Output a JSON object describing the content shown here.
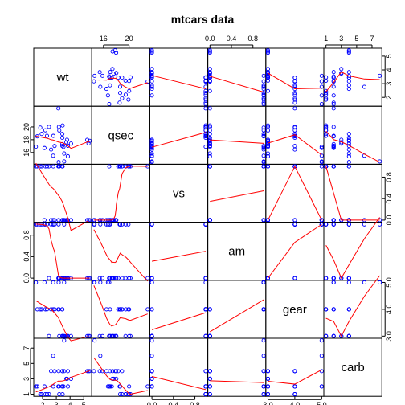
{
  "chart_data": {
    "type": "scatter",
    "title": "mtcars data",
    "variables": [
      "wt",
      "qsec",
      "vs",
      "am",
      "gear",
      "carb"
    ],
    "point_color": "#0000ff",
    "smooth_color": "#ff0000",
    "grid": false,
    "ranges": {
      "wt": [
        1.513,
        5.424
      ],
      "qsec": [
        14.5,
        22.9
      ],
      "vs": [
        0,
        1
      ],
      "am": [
        0,
        1
      ],
      "gear": [
        3,
        5
      ],
      "carb": [
        1,
        8
      ]
    },
    "ticks": {
      "wt": [
        2,
        3,
        4,
        5
      ],
      "qsec": [
        16,
        20
      ],
      "vs": [
        0.0,
        0.4,
        0.8
      ],
      "am": [
        0.0,
        0.4,
        0.8
      ],
      "gear": [
        3.0,
        4.0,
        5.0
      ],
      "carb": [
        1,
        3,
        5,
        7
      ]
    },
    "tick_labels": {
      "wt_bottom": [
        "2",
        "3",
        "4",
        "5"
      ],
      "wt_right": [
        "2",
        "3",
        "4",
        "5"
      ],
      "qsec_top": [
        "16",
        "20"
      ],
      "qsec_left": [
        "16",
        "18",
        "20"
      ],
      "qsec_left_values": [
        16,
        18,
        20
      ],
      "vs_top": [
        "0.0",
        "0.4",
        "0.8"
      ],
      "vs_right": [
        "0.0",
        "0.4",
        "0.8"
      ],
      "am_left": [
        "0.0",
        "0.4",
        "0.8"
      ],
      "am_bottom": [
        "0.0",
        "0.4",
        "0.8"
      ],
      "gear_left": [
        "3.0",
        "4.0",
        "5.0"
      ],
      "gear_right": [
        "3.0",
        "4.0",
        "5.0"
      ],
      "gear_bottom": [
        "3.0",
        "4.0",
        "5.0"
      ],
      "carb_top": [
        "1",
        "3",
        "5",
        "7"
      ],
      "carb_left": [
        "1",
        "3",
        "5",
        "7"
      ]
    },
    "data": {
      "wt": [
        2.62,
        2.875,
        2.32,
        3.215,
        3.44,
        3.46,
        3.57,
        3.19,
        3.15,
        3.44,
        3.44,
        4.07,
        3.73,
        3.78,
        5.25,
        5.424,
        5.345,
        2.2,
        1.615,
        1.835,
        2.465,
        3.52,
        3.435,
        3.84,
        3.845,
        1.935,
        2.14,
        1.513,
        3.17,
        2.77,
        3.57,
        2.78
      ],
      "qsec": [
        16.46,
        17.02,
        18.61,
        19.44,
        17.02,
        20.22,
        15.84,
        20.0,
        22.9,
        18.3,
        18.9,
        17.4,
        17.6,
        18.0,
        17.98,
        17.82,
        17.42,
        19.47,
        18.52,
        19.9,
        20.01,
        16.87,
        17.3,
        15.41,
        17.05,
        18.9,
        16.7,
        16.9,
        14.5,
        15.5,
        14.6,
        18.6
      ],
      "vs": [
        0,
        0,
        1,
        1,
        0,
        1,
        0,
        1,
        1,
        1,
        1,
        0,
        0,
        0,
        0,
        0,
        0,
        1,
        1,
        1,
        1,
        0,
        0,
        0,
        0,
        1,
        0,
        1,
        0,
        0,
        0,
        1
      ],
      "am": [
        1,
        1,
        1,
        0,
        0,
        0,
        0,
        0,
        0,
        0,
        0,
        0,
        0,
        0,
        0,
        0,
        0,
        1,
        1,
        1,
        0,
        0,
        0,
        0,
        0,
        1,
        1,
        1,
        1,
        1,
        1,
        1
      ],
      "gear": [
        4,
        4,
        4,
        3,
        3,
        3,
        3,
        4,
        4,
        4,
        4,
        3,
        3,
        3,
        3,
        3,
        3,
        4,
        4,
        4,
        3,
        3,
        3,
        3,
        3,
        4,
        5,
        5,
        5,
        5,
        5,
        4
      ],
      "carb": [
        4,
        4,
        1,
        1,
        2,
        1,
        4,
        2,
        2,
        4,
        4,
        3,
        3,
        3,
        4,
        4,
        4,
        1,
        2,
        1,
        1,
        2,
        2,
        4,
        2,
        1,
        2,
        2,
        4,
        6,
        8,
        2
      ]
    }
  }
}
